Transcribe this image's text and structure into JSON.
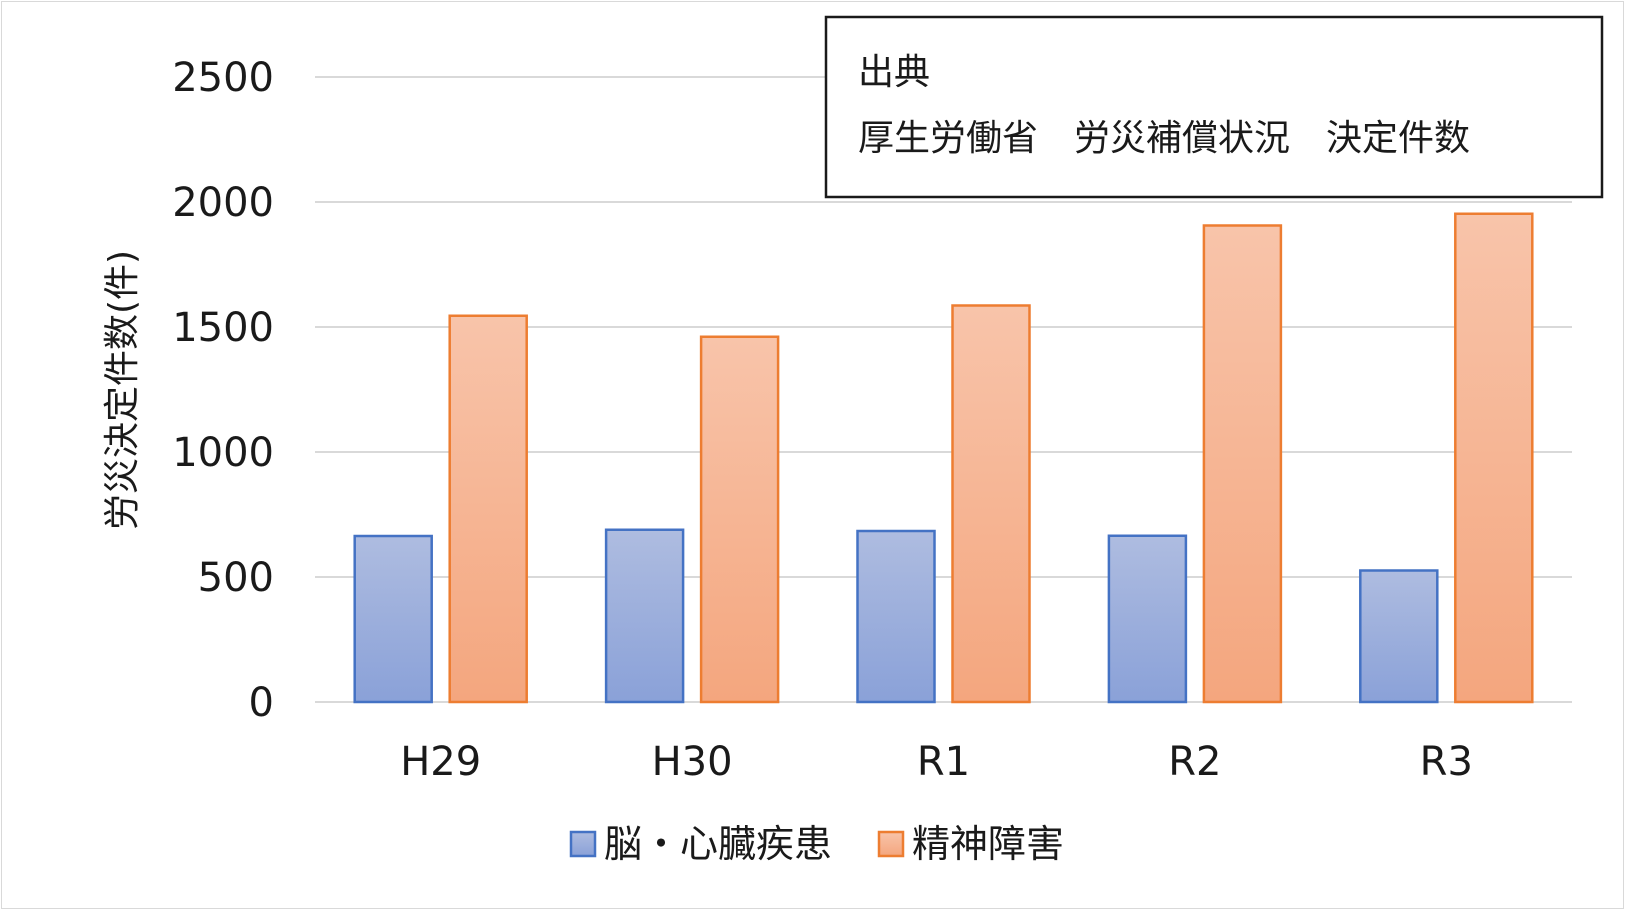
{
  "chart_data": {
    "type": "bar",
    "categories": [
      "H29",
      "H30",
      "R1",
      "R2",
      "R3"
    ],
    "series": [
      {
        "name": "脳・心臓疾患",
        "values": [
          664,
          689,
          684,
          665,
          526
        ],
        "color": "#8faadc",
        "border": "#4472c4"
      },
      {
        "name": "精神障害",
        "values": [
          1545,
          1461,
          1586,
          1906,
          1953
        ],
        "color": "#f4b183",
        "border": "#ed7d31"
      }
    ],
    "ylabel": "労災決定件数(件)",
    "xlabel": "",
    "ylim": [
      0,
      2500
    ],
    "yticks": [
      "0",
      "500",
      "1000",
      "1500",
      "2000",
      "2500"
    ],
    "grid": true,
    "legend_position": "bottom",
    "annotation": {
      "line1": "出典",
      "line2": "厚生労働省　労災補償状況　決定件数"
    }
  }
}
